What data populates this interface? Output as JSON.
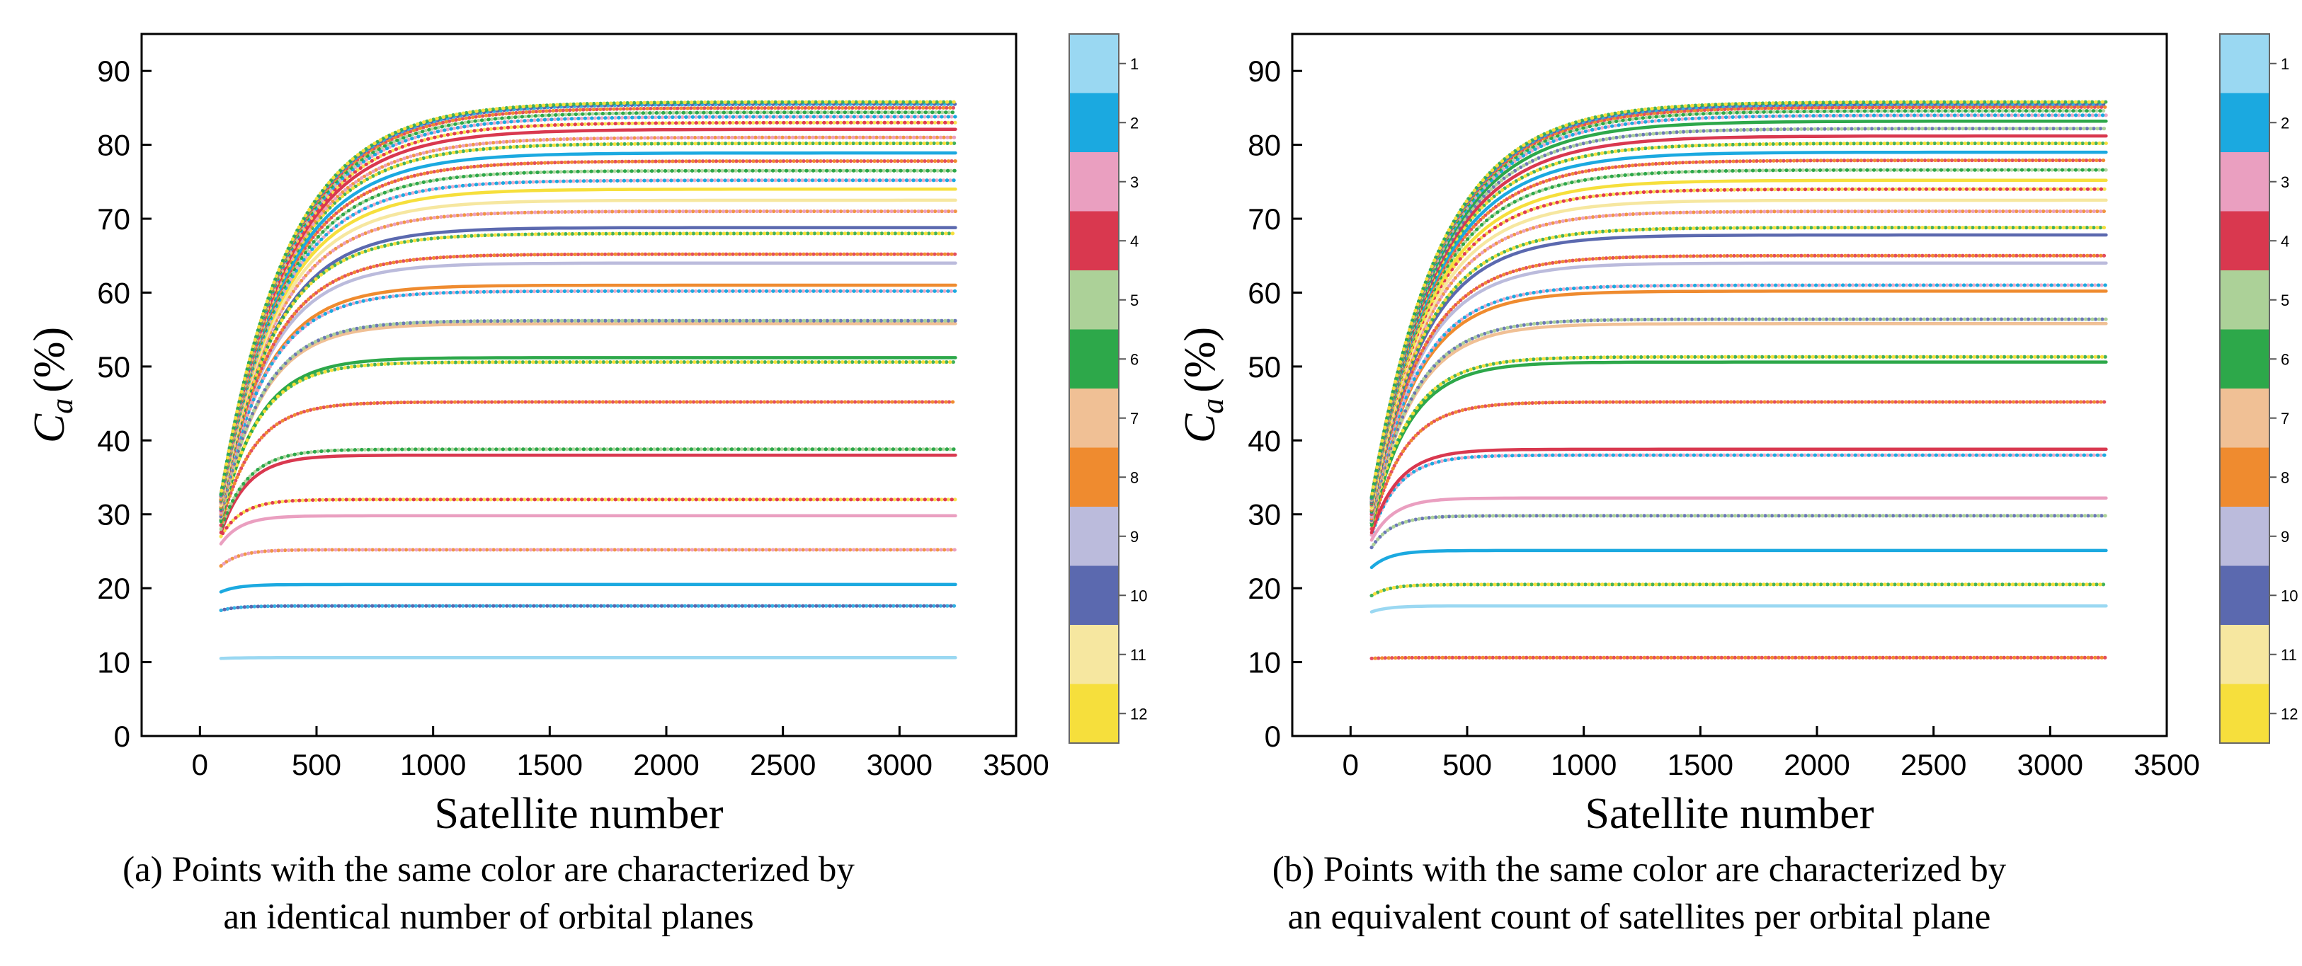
{
  "chart_data": [
    {
      "type": "line",
      "panel": "a",
      "xlabel": "Satellite number",
      "ylabel_main": "C",
      "ylabel_sub": "a",
      "ylabel_unit": "(%)",
      "xlim": [
        -250,
        3500
      ],
      "ylim": [
        0,
        95
      ],
      "xticks": [
        0,
        500,
        1000,
        1500,
        2000,
        2500,
        3000,
        3500
      ],
      "yticks": [
        0,
        10,
        20,
        30,
        40,
        50,
        60,
        70,
        80,
        90
      ],
      "x_range_of_data": [
        90,
        3240
      ],
      "caption_line1": "(a) Points with the same color are characterized by",
      "caption_line2": "an identical number of orbital planes",
      "colorbar_labels": [
        "1",
        "2",
        "3",
        "4",
        "5",
        "6",
        "7",
        "8",
        "9",
        "10",
        "11",
        "12"
      ],
      "series": [
        {
          "start": 10.5,
          "plateau": 10.6,
          "ci": 0,
          "style": "solid"
        },
        {
          "start": 17.0,
          "plateau": 17.6,
          "ci": 5,
          "style": "dotted"
        },
        {
          "start": 19.5,
          "plateau": 20.5,
          "ci": 1,
          "style": "solid"
        },
        {
          "start": 23.0,
          "plateau": 25.2,
          "ci": 6,
          "style": "dotted"
        },
        {
          "start": 26.0,
          "plateau": 29.8,
          "ci": 2,
          "style": "solid"
        },
        {
          "start": 27.0,
          "plateau": 32.0,
          "ci": 4,
          "style": "dotted"
        },
        {
          "start": 27.5,
          "plateau": 38.0,
          "ci": 3,
          "style": "solid"
        },
        {
          "start": 28.0,
          "plateau": 38.8,
          "ci": 7,
          "style": "dotted"
        },
        {
          "start": 28.5,
          "plateau": 45.2,
          "ci": 9,
          "style": "dotted"
        },
        {
          "start": 29.0,
          "plateau": 51.2,
          "ci": 5,
          "style": "solid"
        },
        {
          "start": 29.2,
          "plateau": 50.6,
          "ci": 8,
          "style": "dotted"
        },
        {
          "start": 29.5,
          "plateau": 55.8,
          "ci": 6,
          "style": "solid"
        },
        {
          "start": 29.7,
          "plateau": 56.2,
          "ci": 10,
          "style": "dotted"
        },
        {
          "start": 30.0,
          "plateau": 61.0,
          "ci": 7,
          "style": "solid"
        },
        {
          "start": 30.2,
          "plateau": 60.2,
          "ci": 2,
          "style": "dotted"
        },
        {
          "start": 30.4,
          "plateau": 64.0,
          "ci": 8,
          "style": "solid"
        },
        {
          "start": 30.5,
          "plateau": 65.2,
          "ci": 11,
          "style": "dotted"
        },
        {
          "start": 30.6,
          "plateau": 68.8,
          "ci": 9,
          "style": "solid"
        },
        {
          "start": 30.8,
          "plateau": 68.0,
          "ci": 3,
          "style": "dotted"
        },
        {
          "start": 31.0,
          "plateau": 71.0,
          "ci": 0,
          "style": "dotted"
        },
        {
          "start": 31.2,
          "plateau": 72.5,
          "ci": 10,
          "style": "solid"
        },
        {
          "start": 31.4,
          "plateau": 74.0,
          "ci": 11,
          "style": "solid"
        },
        {
          "start": 31.5,
          "plateau": 75.2,
          "ci": 4,
          "style": "dotted"
        },
        {
          "start": 31.6,
          "plateau": 76.5,
          "ci": 2,
          "style": "dotted"
        },
        {
          "start": 31.7,
          "plateau": 77.8,
          "ci": 5,
          "style": "dotted"
        },
        {
          "start": 31.8,
          "plateau": 78.9,
          "ci": 1,
          "style": "solid"
        },
        {
          "start": 31.9,
          "plateau": 80.2,
          "ci": 6,
          "style": "dotted"
        },
        {
          "start": 32.0,
          "plateau": 81.0,
          "ci": 9,
          "style": "dotted"
        },
        {
          "start": 32.1,
          "plateau": 82.1,
          "ci": 3,
          "style": "solid"
        },
        {
          "start": 32.2,
          "plateau": 83.0,
          "ci": 7,
          "style": "dotted"
        },
        {
          "start": 32.3,
          "plateau": 83.8,
          "ci": 0,
          "style": "dotted"
        },
        {
          "start": 32.4,
          "plateau": 84.4,
          "ci": 10,
          "style": "dotted"
        },
        {
          "start": 32.5,
          "plateau": 85.0,
          "ci": 11,
          "style": "dotted"
        },
        {
          "start": 32.6,
          "plateau": 85.5,
          "ci": 8,
          "style": "dotted"
        },
        {
          "start": 32.7,
          "plateau": 85.8,
          "ci": 2,
          "style": "dotted"
        }
      ]
    },
    {
      "type": "line",
      "panel": "b",
      "xlabel": "Satellite number",
      "ylabel_main": "C",
      "ylabel_sub": "a",
      "ylabel_unit": "(%)",
      "xlim": [
        -250,
        3500
      ],
      "ylim": [
        0,
        95
      ],
      "xticks": [
        0,
        500,
        1000,
        1500,
        2000,
        2500,
        3000,
        3500
      ],
      "yticks": [
        0,
        10,
        20,
        30,
        40,
        50,
        60,
        70,
        80,
        90
      ],
      "x_range_of_data": [
        90,
        3240
      ],
      "caption_line1": "(b) Points with the same color are characterized by",
      "caption_line2": "an equivalent count of satellites per orbital plane",
      "colorbar_labels": [
        "1",
        "2",
        "3",
        "4",
        "5",
        "6",
        "7",
        "8",
        "9",
        "10",
        "11",
        "12"
      ],
      "series": [
        {
          "start": 10.5,
          "plateau": 10.6,
          "ci": 4,
          "style": "dotted"
        },
        {
          "start": 16.8,
          "plateau": 17.6,
          "ci": 0,
          "style": "solid"
        },
        {
          "start": 19.0,
          "plateau": 20.5,
          "ci": 6,
          "style": "dotted"
        },
        {
          "start": 22.8,
          "plateau": 25.1,
          "ci": 1,
          "style": "solid"
        },
        {
          "start": 25.5,
          "plateau": 29.8,
          "ci": 5,
          "style": "dotted"
        },
        {
          "start": 26.5,
          "plateau": 32.2,
          "ci": 2,
          "style": "solid"
        },
        {
          "start": 27.2,
          "plateau": 38.0,
          "ci": 9,
          "style": "dotted"
        },
        {
          "start": 27.5,
          "plateau": 38.8,
          "ci": 3,
          "style": "solid"
        },
        {
          "start": 28.0,
          "plateau": 45.2,
          "ci": 4,
          "style": "dotted"
        },
        {
          "start": 28.5,
          "plateau": 50.6,
          "ci": 5,
          "style": "solid"
        },
        {
          "start": 28.8,
          "plateau": 51.3,
          "ci": 7,
          "style": "dotted"
        },
        {
          "start": 29.0,
          "plateau": 55.8,
          "ci": 6,
          "style": "solid"
        },
        {
          "start": 29.2,
          "plateau": 56.4,
          "ci": 3,
          "style": "dotted"
        },
        {
          "start": 29.4,
          "plateau": 60.2,
          "ci": 7,
          "style": "solid"
        },
        {
          "start": 29.6,
          "plateau": 61.0,
          "ci": 9,
          "style": "dotted"
        },
        {
          "start": 29.8,
          "plateau": 64.0,
          "ci": 8,
          "style": "solid"
        },
        {
          "start": 30.0,
          "plateau": 65.0,
          "ci": 10,
          "style": "dotted"
        },
        {
          "start": 30.2,
          "plateau": 67.8,
          "ci": 9,
          "style": "solid"
        },
        {
          "start": 30.4,
          "plateau": 68.8,
          "ci": 2,
          "style": "dotted"
        },
        {
          "start": 30.6,
          "plateau": 71.0,
          "ci": 11,
          "style": "dotted"
        },
        {
          "start": 30.8,
          "plateau": 72.5,
          "ci": 10,
          "style": "solid"
        },
        {
          "start": 31.0,
          "plateau": 74.0,
          "ci": 0,
          "style": "dotted"
        },
        {
          "start": 31.1,
          "plateau": 75.2,
          "ci": 11,
          "style": "solid"
        },
        {
          "start": 31.2,
          "plateau": 76.6,
          "ci": 1,
          "style": "dotted"
        },
        {
          "start": 31.3,
          "plateau": 77.9,
          "ci": 8,
          "style": "dotted"
        },
        {
          "start": 31.4,
          "plateau": 79.0,
          "ci": 1,
          "style": "solid"
        },
        {
          "start": 31.5,
          "plateau": 80.2,
          "ci": 5,
          "style": "dotted"
        },
        {
          "start": 31.6,
          "plateau": 81.2,
          "ci": 3,
          "style": "solid"
        },
        {
          "start": 31.7,
          "plateau": 82.2,
          "ci": 2,
          "style": "dotted"
        },
        {
          "start": 31.8,
          "plateau": 83.2,
          "ci": 5,
          "style": "solid"
        },
        {
          "start": 31.9,
          "plateau": 84.0,
          "ci": 6,
          "style": "dotted"
        },
        {
          "start": 32.0,
          "plateau": 84.6,
          "ci": 7,
          "style": "dotted"
        },
        {
          "start": 32.1,
          "plateau": 85.1,
          "ci": 4,
          "style": "dotted"
        },
        {
          "start": 32.2,
          "plateau": 85.5,
          "ci": 0,
          "style": "dotted"
        },
        {
          "start": 32.3,
          "plateau": 85.8,
          "ci": 10,
          "style": "dotted"
        }
      ]
    }
  ],
  "colors": [
    "#9ad8f2",
    "#1ba9e0",
    "#ea9fc0",
    "#d9384f",
    "#acd198",
    "#2da84a",
    "#f0c095",
    "#ef8b2f",
    "#bbbbdc",
    "#5b69af",
    "#f6e7a0",
    "#f6df3c"
  ],
  "dot_colors": [
    "#e03b52",
    "#1ba9e0",
    "#2da84a",
    "#ef8b2f",
    "#5b69af",
    "#f6df3c",
    "#ea9fc0",
    "#acd198"
  ]
}
